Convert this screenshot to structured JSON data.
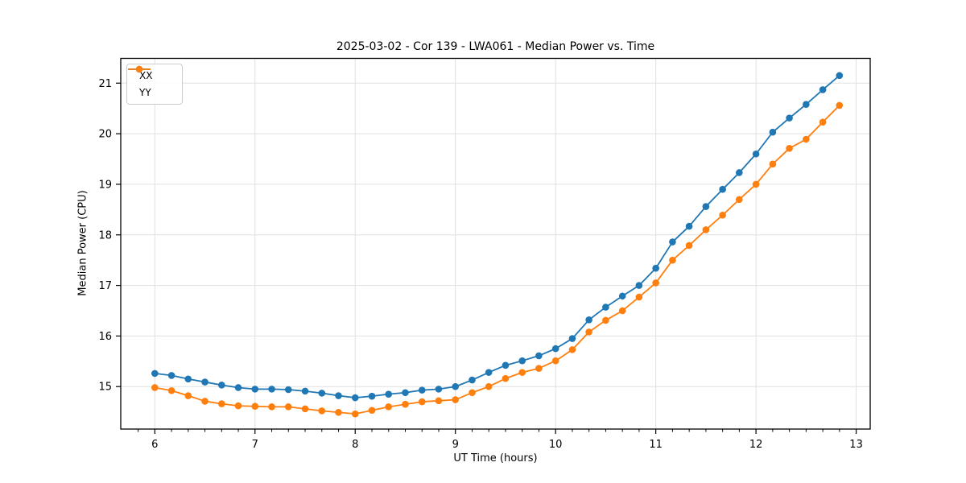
{
  "chart_data": {
    "type": "line",
    "title": "2025-03-02 - Cor 139 - LWA061 - Median Power vs. Time",
    "xlabel": "UT Time (hours)",
    "ylabel": "Median Power (CPU)",
    "xlim": [
      5.66,
      13.14
    ],
    "ylim": [
      14.16,
      21.49
    ],
    "xticks": [
      6,
      7,
      8,
      9,
      10,
      11,
      12,
      13
    ],
    "yticks": [
      15,
      16,
      17,
      18,
      19,
      20,
      21
    ],
    "minor_xtick_step": 0.16667,
    "grid": true,
    "legend_position": "upper left",
    "x": [
      6.0,
      6.167,
      6.333,
      6.5,
      6.667,
      6.833,
      7.0,
      7.167,
      7.333,
      7.5,
      7.667,
      7.833,
      8.0,
      8.167,
      8.333,
      8.5,
      8.667,
      8.833,
      9.0,
      9.167,
      9.333,
      9.5,
      9.667,
      9.833,
      10.0,
      10.167,
      10.333,
      10.5,
      10.667,
      10.833,
      11.0,
      11.167,
      11.333,
      11.5,
      11.667,
      11.833,
      12.0,
      12.167,
      12.333,
      12.5,
      12.667,
      12.833
    ],
    "series": [
      {
        "name": "XX",
        "color": "#1f77b4",
        "values": [
          15.26,
          15.22,
          15.15,
          15.09,
          15.03,
          14.98,
          14.95,
          14.95,
          14.94,
          14.91,
          14.87,
          14.82,
          14.78,
          14.81,
          14.85,
          14.88,
          14.93,
          14.95,
          15.0,
          15.13,
          15.28,
          15.42,
          15.51,
          15.61,
          15.75,
          15.95,
          16.32,
          16.57,
          16.79,
          17.0,
          17.34,
          17.86,
          18.17,
          18.56,
          18.9,
          19.23,
          19.6,
          20.03,
          20.31,
          20.58,
          20.87,
          21.15
        ]
      },
      {
        "name": "YY",
        "color": "#ff7f0e",
        "values": [
          14.98,
          14.92,
          14.82,
          14.71,
          14.66,
          14.62,
          14.61,
          14.6,
          14.6,
          14.56,
          14.52,
          14.49,
          14.46,
          14.53,
          14.6,
          14.65,
          14.7,
          14.72,
          14.74,
          14.88,
          15.0,
          15.16,
          15.28,
          15.36,
          15.51,
          15.73,
          16.08,
          16.31,
          16.5,
          16.77,
          17.05,
          17.5,
          17.79,
          18.1,
          18.39,
          18.7,
          19.0,
          19.4,
          19.71,
          19.89,
          20.23,
          20.56
        ]
      }
    ],
    "colors": {
      "grid": "#e0e0e0",
      "spine": "#000000",
      "tick_text": "#000000",
      "background": "#ffffff"
    }
  }
}
